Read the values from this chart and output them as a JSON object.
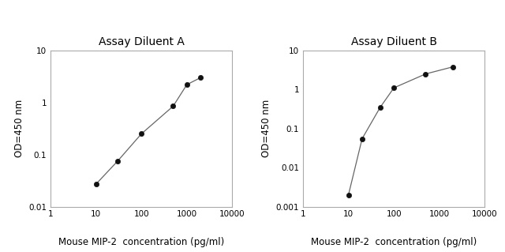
{
  "chart_a": {
    "title": "Assay Diluent A",
    "x": [
      10,
      30,
      100,
      500,
      1000,
      2000
    ],
    "y": [
      0.027,
      0.075,
      0.25,
      0.85,
      2.2,
      3.0
    ],
    "xlim": [
      1,
      10000
    ],
    "ylim": [
      0.01,
      10
    ],
    "xlabel": "Mouse MIP-2  concentration (pg/ml)",
    "ylabel": "OD=450 nm",
    "xticks": [
      1,
      10,
      100,
      1000,
      10000
    ],
    "xtick_labels": [
      "1",
      "10",
      "100",
      "1000",
      "10000"
    ],
    "yticks": [
      0.01,
      0.1,
      1,
      10
    ],
    "ytick_labels": [
      "0.01",
      "0.1",
      "1",
      "10"
    ]
  },
  "chart_b": {
    "title": "Assay Diluent B",
    "x": [
      10,
      20,
      50,
      100,
      500,
      2000
    ],
    "y": [
      0.002,
      0.055,
      0.35,
      1.1,
      2.5,
      3.8
    ],
    "xlim": [
      1,
      10000
    ],
    "ylim": [
      0.001,
      10
    ],
    "xlabel": "Mouse MIP-2  concentration (pg/ml)",
    "ylabel": "OD=450 nm",
    "xticks": [
      1,
      10,
      100,
      1000,
      10000
    ],
    "xtick_labels": [
      "1",
      "10",
      "100",
      "1000",
      "10000"
    ],
    "yticks": [
      0.001,
      0.01,
      0.1,
      1,
      10
    ],
    "ytick_labels": [
      "0.001",
      "0.01",
      "0.1",
      "1",
      "10"
    ]
  },
  "line_color": "#666666",
  "marker_color": "#111111",
  "background_color": "#ffffff",
  "title_fontsize": 10,
  "label_fontsize": 8.5,
  "tick_fontsize": 7.5,
  "spine_color": "#aaaaaa"
}
